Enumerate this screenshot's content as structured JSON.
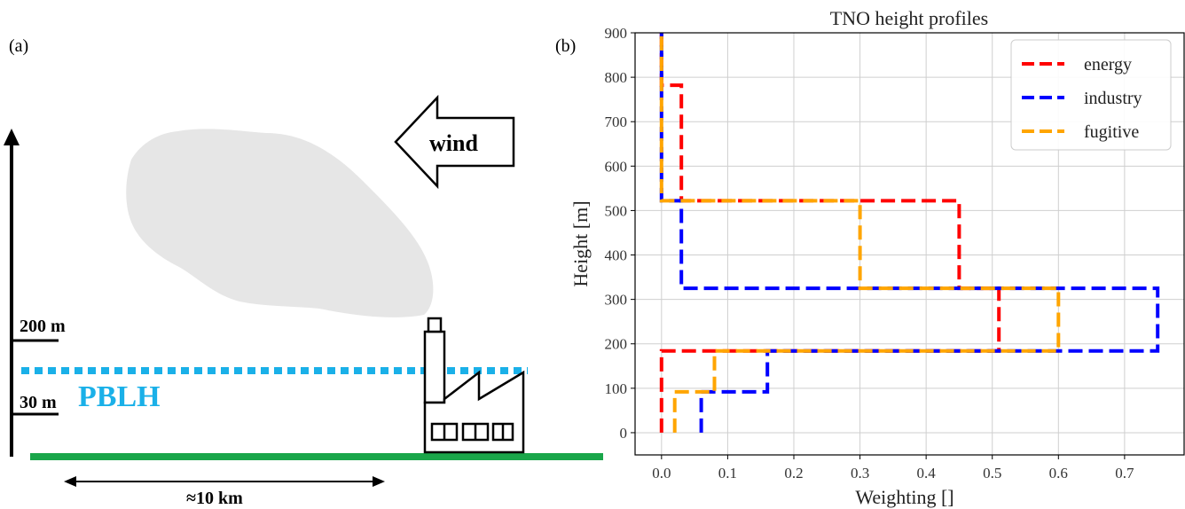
{
  "panel_a": {
    "label": "(a)",
    "wind_label": "wind",
    "level_200_label": "200 m",
    "level_30_label": "30 m",
    "pblh_label": "PBLH",
    "distance_label": "≈10 km",
    "colors": {
      "pblh": "#1ab0e8",
      "ground": "#1aa64a",
      "plume": "#e6e6e6"
    }
  },
  "chart_data": {
    "type": "line",
    "panel_label": "(b)",
    "title": "TNO height profiles",
    "xlabel": "Weighting []",
    "ylabel": "Height [m]",
    "xlim": [
      -0.04,
      0.79
    ],
    "ylim": [
      -50,
      900
    ],
    "xticks": [
      0.0,
      0.1,
      0.2,
      0.3,
      0.4,
      0.5,
      0.6,
      0.7
    ],
    "xtick_labels": [
      "0.0",
      "0.1",
      "0.2",
      "0.3",
      "0.4",
      "0.5",
      "0.6",
      "0.7"
    ],
    "yticks": [
      0,
      100,
      200,
      300,
      400,
      500,
      600,
      700,
      800,
      900
    ],
    "ytick_labels": [
      "0",
      "100",
      "200",
      "300",
      "400",
      "500",
      "600",
      "700",
      "800",
      "900"
    ],
    "grid": true,
    "legend_position": "top-right",
    "series": [
      {
        "name": "energy",
        "color": "#ff0000",
        "x": [
          0.0,
          0.0,
          0.0,
          0.51,
          0.51,
          0.45,
          0.45,
          0.03,
          0.03,
          0.0,
          0.0
        ],
        "y": [
          0,
          92,
          184,
          184,
          325,
          325,
          522,
          522,
          782,
          782,
          900
        ]
      },
      {
        "name": "industry",
        "color": "#0000ff",
        "x": [
          0.06,
          0.06,
          0.16,
          0.16,
          0.75,
          0.75,
          0.03,
          0.03,
          0.0,
          0.0
        ],
        "y": [
          0,
          92,
          92,
          184,
          184,
          325,
          325,
          522,
          522,
          900
        ]
      },
      {
        "name": "fugitive",
        "color": "#ffa500",
        "x": [
          0.02,
          0.02,
          0.08,
          0.08,
          0.6,
          0.6,
          0.3,
          0.3,
          0.0,
          0.0
        ],
        "y": [
          0,
          92,
          92,
          184,
          184,
          325,
          325,
          522,
          522,
          900
        ]
      }
    ]
  }
}
